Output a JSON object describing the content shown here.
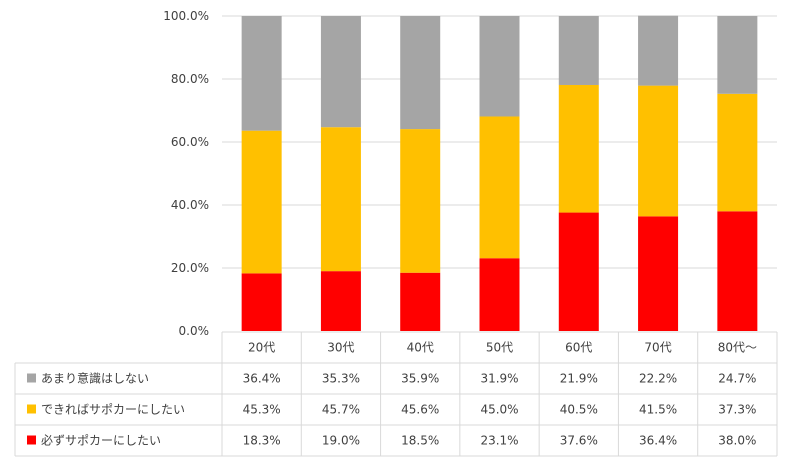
{
  "chart_data": {
    "type": "bar",
    "stacked": true,
    "categories": [
      "20代",
      "30代",
      "40代",
      "50代",
      "60代",
      "70代",
      "80代～"
    ],
    "series": [
      {
        "name": "必ずサポカーにしたい",
        "color": "#ff0000",
        "values": [
          18.3,
          19.0,
          18.5,
          23.1,
          37.6,
          36.4,
          38.0
        ],
        "labels": [
          "18.3%",
          "19.0%",
          "18.5%",
          "23.1%",
          "37.6%",
          "36.4%",
          "38.0%"
        ]
      },
      {
        "name": "できればサポカーにしたい",
        "color": "#ffc000",
        "values": [
          45.3,
          45.7,
          45.6,
          45.0,
          40.5,
          41.5,
          37.3
        ],
        "labels": [
          "45.3%",
          "45.7%",
          "45.6%",
          "45.0%",
          "40.5%",
          "41.5%",
          "37.3%"
        ]
      },
      {
        "name": "あまり意識はしない",
        "color": "#a5a5a5",
        "values": [
          36.4,
          35.3,
          35.9,
          31.9,
          21.9,
          22.2,
          24.7
        ],
        "labels": [
          "36.4%",
          "35.3%",
          "35.9%",
          "31.9%",
          "21.9%",
          "22.2%",
          "24.7%"
        ]
      }
    ],
    "table_row_order": [
      "あまり意識はしない",
      "できればサポカーにしたい",
      "必ずサポカーにしたい"
    ],
    "yticks": [
      "0.0%",
      "20.0%",
      "40.0%",
      "60.0%",
      "80.0%",
      "100.0%"
    ],
    "ylim": [
      0,
      100
    ],
    "grid": true,
    "legend": "data-table"
  }
}
